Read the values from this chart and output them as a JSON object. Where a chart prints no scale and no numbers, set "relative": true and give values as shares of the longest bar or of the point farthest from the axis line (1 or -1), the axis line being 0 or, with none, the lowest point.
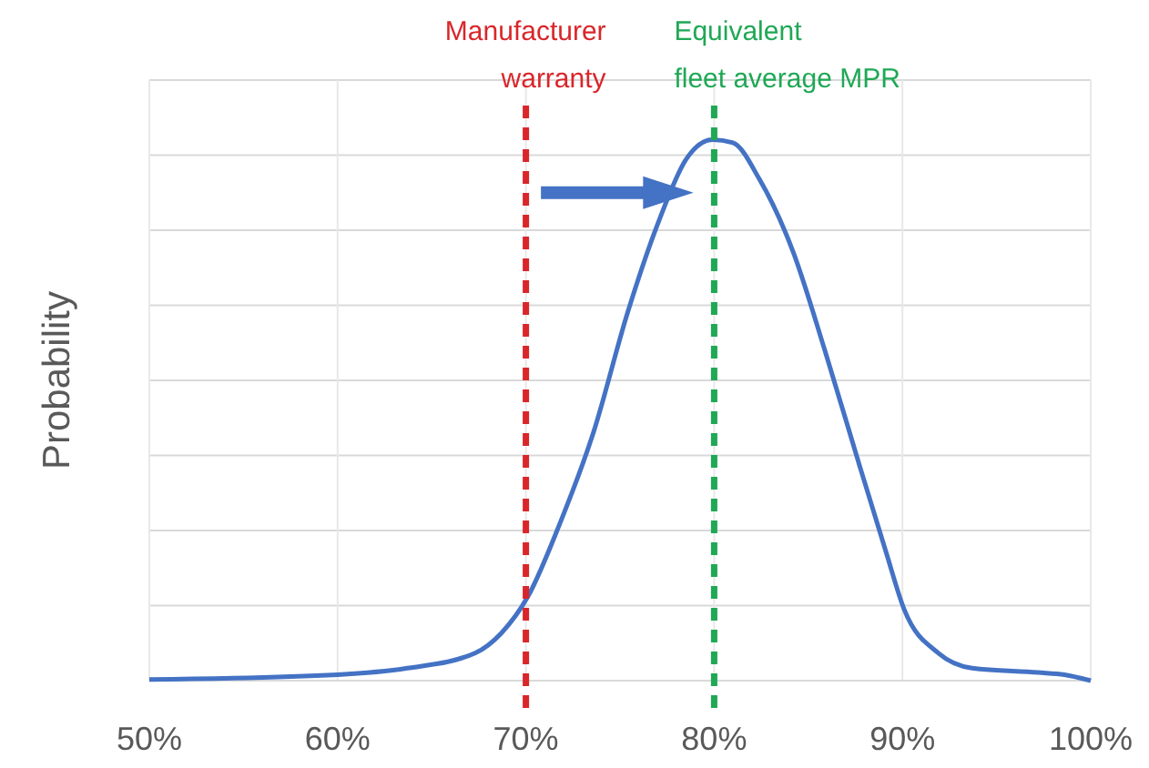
{
  "chart_data": {
    "type": "line",
    "ylabel": "Probability",
    "relative": true,
    "grid": true,
    "line_style": "solid",
    "x": [
      50,
      60,
      63.7,
      67.3,
      68.7,
      70.1,
      71.8,
      73.6,
      75.4,
      77.1,
      78.5,
      79.9,
      81,
      82.4,
      84.2,
      85.9,
      87.7,
      89.1,
      90.1,
      91.9,
      93.7,
      97.2,
      98.6,
      100
    ],
    "series": [
      {
        "color": "#4472c4",
        "values": [
          0.002,
          0.011,
          0.023,
          0.051,
          0.088,
          0.155,
          0.29,
          0.46,
          0.68,
          0.853,
          0.963,
          1,
          0.994,
          0.927,
          0.792,
          0.608,
          0.4,
          0.241,
          0.131,
          0.051,
          0.023,
          0.015,
          0.011,
          0
        ]
      }
    ],
    "xlim": [
      50,
      100
    ],
    "xticks": [
      {
        "value": 50,
        "label": "50%"
      },
      {
        "value": 60,
        "label": "60%"
      },
      {
        "value": 70,
        "label": "70%"
      },
      {
        "value": 80,
        "label": "80%"
      },
      {
        "value": 90,
        "label": "90%"
      },
      {
        "value": 100,
        "label": "100%"
      }
    ],
    "ref_lines": [
      {
        "axis": "x",
        "value": 70,
        "label": "Manufacturer warranty",
        "color": "#d9262a",
        "line_style": "dashed"
      },
      {
        "axis": "x",
        "value": 80,
        "label": "Equivalent fleet average MPR",
        "color": "#1fa855",
        "line_style": "dashed"
      }
    ]
  }
}
